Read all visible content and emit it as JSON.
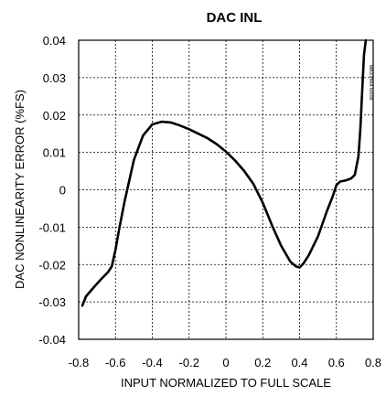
{
  "chart_data": {
    "type": "line",
    "title": "DAC INL",
    "xlabel": "INPUT NORMALIZED TO FULL SCALE",
    "ylabel": "DAC NONLINEARITY ERROR (%FS)",
    "figure_id": "MAX1464 toc08",
    "xlim": [
      -0.8,
      0.8
    ],
    "ylim": [
      -0.04,
      0.04
    ],
    "xticks": [
      -0.8,
      -0.6,
      -0.4,
      -0.2,
      0,
      0.2,
      0.4,
      0.6,
      0.8
    ],
    "xtick_labels": [
      "-0.8",
      "-0.6",
      "-0.4",
      "-0.2",
      "0",
      "0.2",
      "0.4",
      "0.6",
      "0.8"
    ],
    "yticks": [
      0.04,
      0.03,
      0.02,
      0.01,
      0,
      -0.01,
      -0.02,
      -0.03,
      -0.04
    ],
    "ytick_labels": [
      "0.04",
      "0.03",
      "0.02",
      "0.01",
      "0",
      "-0.01",
      "-0.02",
      "-0.03",
      "-0.04"
    ],
    "grid": true,
    "series": [
      {
        "color": "#000000",
        "x": [
          -0.78,
          -0.76,
          -0.72,
          -0.68,
          -0.64,
          -0.62,
          -0.6,
          -0.58,
          -0.55,
          -0.5,
          -0.45,
          -0.4,
          -0.35,
          -0.3,
          -0.25,
          -0.2,
          -0.15,
          -0.1,
          -0.05,
          0.0,
          0.05,
          0.1,
          0.15,
          0.2,
          0.25,
          0.3,
          0.35,
          0.38,
          0.4,
          0.42,
          0.45,
          0.5,
          0.55,
          0.58,
          0.6,
          0.62,
          0.65,
          0.68,
          0.7,
          0.72,
          0.73,
          0.74,
          0.75,
          0.76
        ],
        "y": [
          -0.031,
          -0.0285,
          -0.0262,
          -0.024,
          -0.022,
          -0.0205,
          -0.016,
          -0.0105,
          -0.003,
          0.008,
          0.0145,
          0.0175,
          0.0182,
          0.018,
          0.0172,
          0.0162,
          0.015,
          0.0138,
          0.0122,
          0.0102,
          0.0078,
          0.005,
          0.0015,
          -0.0035,
          -0.0095,
          -0.015,
          -0.0192,
          -0.0205,
          -0.0208,
          -0.0198,
          -0.0175,
          -0.0125,
          -0.0055,
          -0.0018,
          0.0012,
          0.0022,
          0.0025,
          0.003,
          0.004,
          0.009,
          0.016,
          0.026,
          0.036,
          0.04
        ]
      }
    ]
  }
}
